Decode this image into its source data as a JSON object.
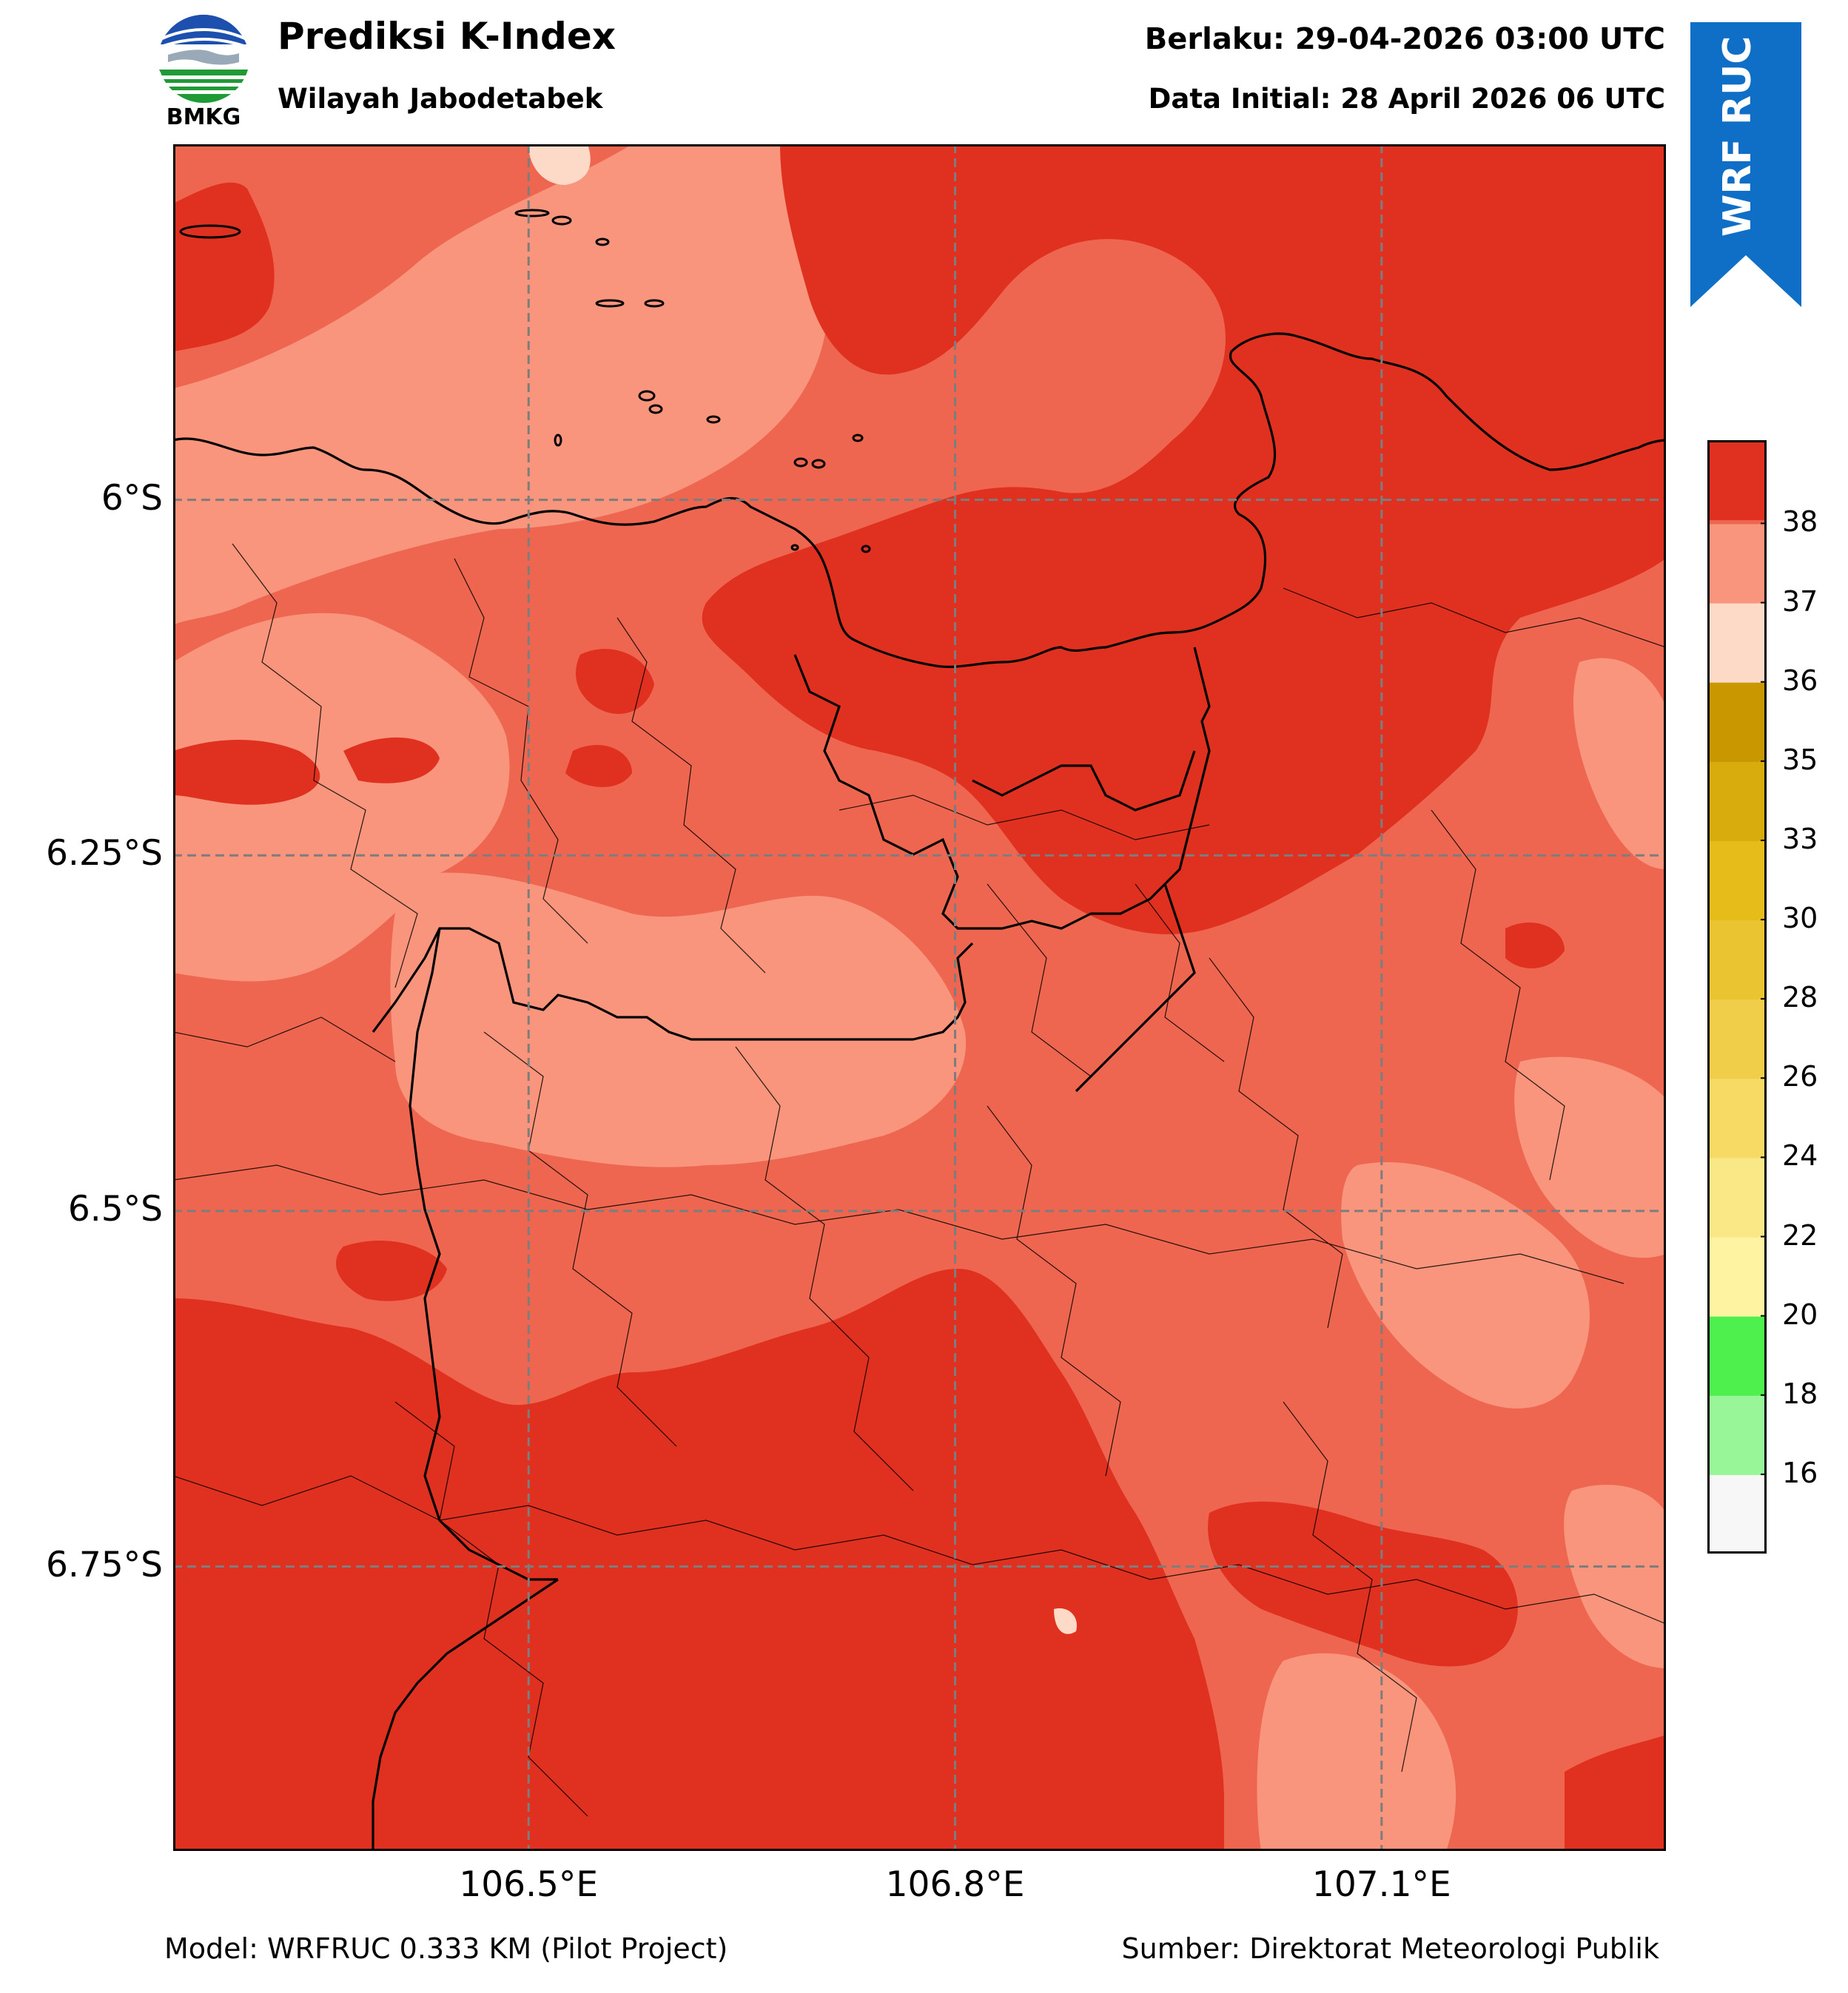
{
  "header": {
    "logo_text": "BMKG",
    "title": "Prediksi K-Index",
    "subtitle": "Wilayah Jabodetabek",
    "valid_time": "Berlaku: 29-04-2026 03:00 UTC",
    "initial_data": "Data Initial: 28 April 2026 06 UTC"
  },
  "badge": {
    "text": "WRF RUC",
    "color": "#0f6fc6"
  },
  "map": {
    "lat_labels": [
      "6°S",
      "6.25°S",
      "6.5°S",
      "6.75°S"
    ],
    "lon_labels": [
      "106.5°E",
      "106.8°E",
      "107.1°E"
    ],
    "lat_values": [
      -6.0,
      -6.25,
      -6.5,
      -6.75
    ],
    "lon_values": [
      106.5,
      106.8,
      107.1
    ],
    "extent": {
      "lon_min": 106.25,
      "lon_max": 107.3,
      "lat_min": -6.95,
      "lat_max": -5.75
    },
    "fill_colors": {
      "k36_37": "#f8957c",
      "k37_38": "#ee6650",
      "k38_plus": "#e03020",
      "k35_36": "#fdd9c8"
    }
  },
  "colorbar": {
    "tick_labels": [
      "16",
      "18",
      "20",
      "22",
      "24",
      "26",
      "28",
      "30",
      "33",
      "35",
      "36",
      "37",
      "38"
    ],
    "bins_bottom_to_top": [
      {
        "color": "#f7f7f7"
      },
      {
        "color": "#98f598"
      },
      {
        "color": "#4ef04e"
      },
      {
        "color": "#fef3a0"
      },
      {
        "color": "#fae886"
      },
      {
        "color": "#f6da64"
      },
      {
        "color": "#f1ce4a"
      },
      {
        "color": "#ebc432"
      },
      {
        "color": "#e6bc1a"
      },
      {
        "color": "#d8ac0c"
      },
      {
        "color": "#c99800"
      },
      {
        "color": "#fdd9c8"
      },
      {
        "color": "#f8957c"
      },
      {
        "color": "#ee6650"
      },
      {
        "color": "#e03020"
      }
    ]
  },
  "footer": {
    "model": "Model: WRFRUC 0.333 KM (Pilot Project)",
    "source": "Sumber: Direktorat Meteorologi Publik"
  }
}
